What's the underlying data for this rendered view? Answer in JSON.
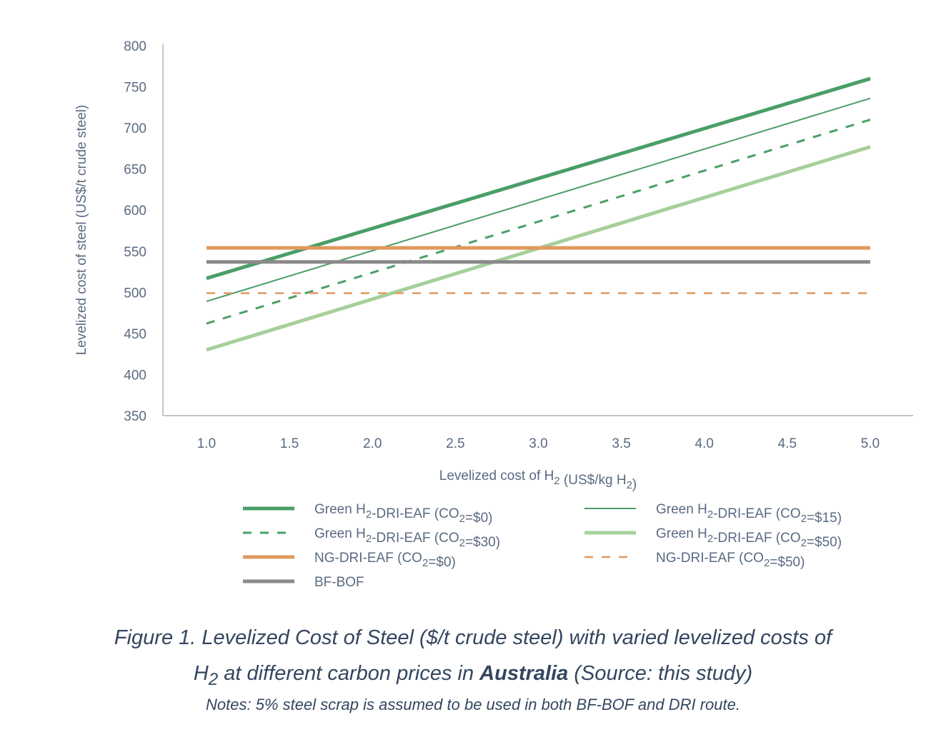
{
  "chart_data": {
    "type": "line",
    "xlabel": "Levelized cost of H2 (US$/kg H2)",
    "ylabel": "Levelized cost of steel (US$/t crude steel)",
    "xlim": [
      1.0,
      5.0
    ],
    "ylim": [
      350,
      800
    ],
    "xticks": [
      "1.0",
      "1.5",
      "2.0",
      "2.5",
      "3.0",
      "3.5",
      "4.0",
      "4.5",
      "5.0"
    ],
    "yticks": [
      "350",
      "400",
      "450",
      "500",
      "550",
      "600",
      "650",
      "700",
      "750",
      "800"
    ],
    "grid": false,
    "legend_position": "bottom",
    "series": [
      {
        "name": "Green H2-DRI-EAF (CO2=$0)",
        "x": [
          1.0,
          5.0
        ],
        "y": [
          517,
          760
        ],
        "color": "#4a9e68",
        "width": 5,
        "dash": false
      },
      {
        "name": "Green H2-DRI-EAF (CO2=$15)",
        "x": [
          1.0,
          5.0
        ],
        "y": [
          489,
          736
        ],
        "color": "#4a9e68",
        "width": 2,
        "dash": false
      },
      {
        "name": "Green H2-DRI-EAF (CO2=$30)",
        "x": [
          1.0,
          5.0
        ],
        "y": [
          462,
          710
        ],
        "color": "#4a9e68",
        "width": 3,
        "dash": true
      },
      {
        "name": "Green H2-DRI-EAF (CO2=$50)",
        "x": [
          1.0,
          5.0
        ],
        "y": [
          430,
          677
        ],
        "color": "#a6d09a",
        "width": 5,
        "dash": false
      },
      {
        "name": "NG-DRI-EAF (CO2=$0)",
        "x": [
          1.0,
          5.0
        ],
        "y": [
          554,
          554
        ],
        "color": "#e0995e",
        "width": 5,
        "dash": false
      },
      {
        "name": "NG-DRI-EAF (CO2=$50)",
        "x": [
          1.0,
          5.0
        ],
        "y": [
          499,
          499
        ],
        "color": "#e0995e",
        "width": 2.5,
        "dash": true
      },
      {
        "name": "BF-BOF",
        "x": [
          1.0,
          5.0
        ],
        "y": [
          537,
          537
        ],
        "color": "#8a8a8a",
        "width": 5,
        "dash": false
      }
    ]
  },
  "caption": {
    "line1": "Figure 1. Levelized Cost of Steel ($/t crude steel) with varied levelized costs of",
    "line2_pre": "H2 at different carbon prices in ",
    "line2_bold": "Australia",
    "line2_post": " (Source: this study)",
    "notes": "Notes: 5% steel scrap is assumed to be used in both BF-BOF and DRI route."
  }
}
